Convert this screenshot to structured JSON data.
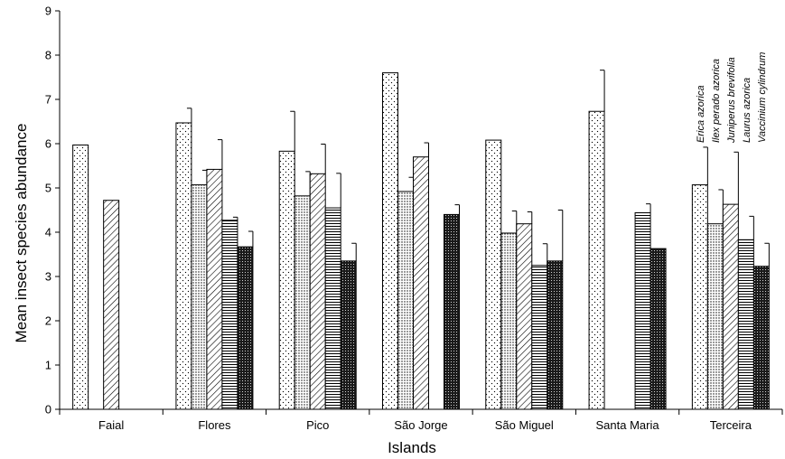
{
  "chart_data": {
    "type": "bar",
    "title": "",
    "xlabel": "Islands",
    "ylabel": "Mean insect species abundance",
    "ylim": [
      0,
      9
    ],
    "yticks": [
      "0",
      "1",
      "2",
      "3",
      "4",
      "5",
      "6",
      "7",
      "8",
      "9"
    ],
    "grid": false,
    "legend_placement": "top-right, rotated labels above Terceira bars",
    "categories": [
      "Faial",
      "Flores",
      "Pico",
      "São Jorge",
      "São Miguel",
      "Santa Maria",
      "Terceira"
    ],
    "series": [
      {
        "name": "Erica azorica",
        "pattern": "sparse-dots",
        "values": [
          5.97,
          6.47,
          5.83,
          7.6,
          6.08,
          6.73,
          5.07
        ],
        "errors": [
          null,
          0.33,
          0.9,
          null,
          null,
          0.93,
          0.85
        ]
      },
      {
        "name": "Ilex perado azorica",
        "pattern": "dense-dots",
        "values": [
          null,
          5.07,
          4.82,
          4.92,
          3.98,
          null,
          4.19
        ],
        "errors": [
          null,
          0.33,
          0.55,
          0.32,
          0.5,
          null,
          0.77
        ]
      },
      {
        "name": "Juniperus brevifolia",
        "pattern": "diagonal",
        "values": [
          4.72,
          5.42,
          5.32,
          5.7,
          4.19,
          null,
          4.63
        ],
        "errors": [
          null,
          0.67,
          0.67,
          0.32,
          0.27,
          null,
          1.18
        ]
      },
      {
        "name": "Laurus azorica",
        "pattern": "horizontal",
        "values": [
          null,
          4.27,
          4.55,
          null,
          3.25,
          4.44,
          3.83
        ],
        "errors": [
          null,
          0.07,
          0.78,
          null,
          0.49,
          0.2,
          0.53
        ]
      },
      {
        "name": "Vaccinium cylindrum",
        "pattern": "dark-dense",
        "values": [
          null,
          3.67,
          3.35,
          4.4,
          3.35,
          3.63,
          3.23
        ],
        "errors": [
          null,
          0.35,
          0.4,
          0.22,
          1.15,
          null,
          0.52
        ]
      }
    ]
  }
}
